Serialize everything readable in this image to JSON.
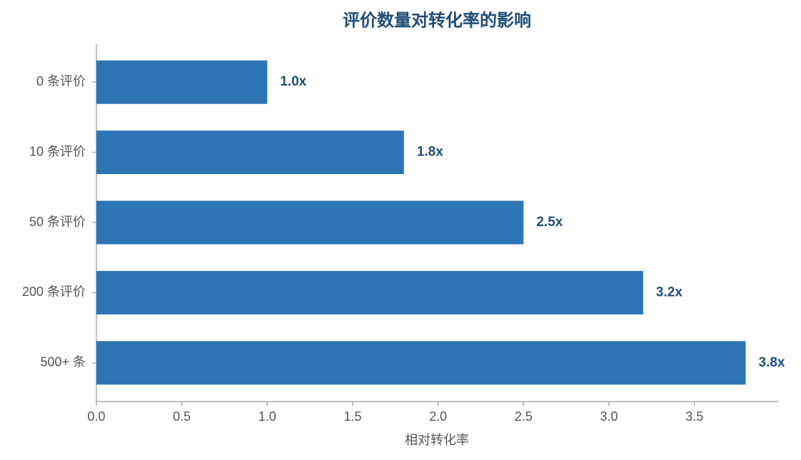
{
  "chart_data": {
    "type": "barh",
    "title": "评价数量对转化率的影响",
    "x_label": "相对转化率",
    "categories": [
      "0 条评价",
      "10 条评价",
      "50 条评价",
      "200 条评价",
      "500+ 条"
    ],
    "values": [
      1.0,
      1.8,
      2.5,
      3.2,
      3.8
    ],
    "value_labels": [
      "1.0x",
      "1.8x",
      "2.5x",
      "3.2x",
      "3.8x"
    ],
    "color": "#2e75b6",
    "xlim": [
      0,
      3.99
    ],
    "xticks": [
      {
        "value": 0,
        "label": "0.0"
      },
      0.5,
      {
        "value": 1,
        "label": "1.0"
      },
      1.5,
      {
        "value": 2,
        "label": "2.0"
      },
      2.5,
      {
        "value": 3,
        "label": "3.0"
      },
      3.5
    ],
    "grid": false
  }
}
